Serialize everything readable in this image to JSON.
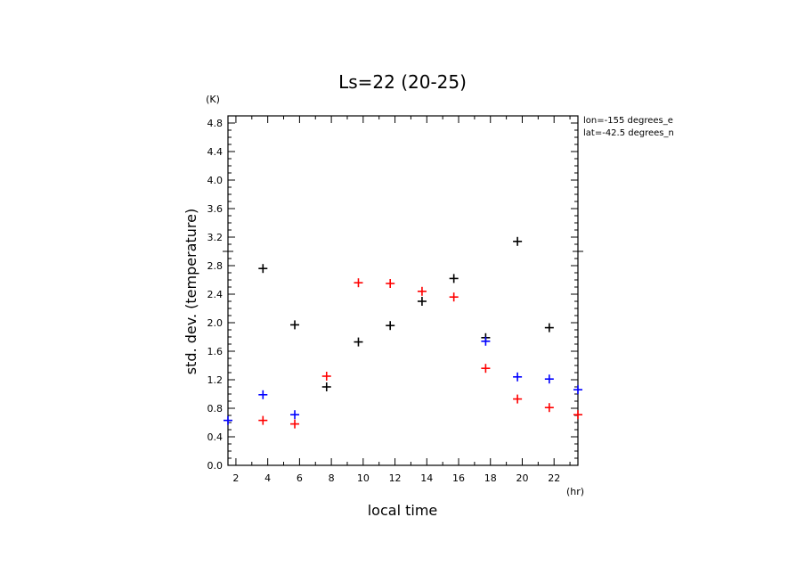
{
  "chart_data": {
    "type": "scatter",
    "title": "Ls=22 (20-25)",
    "xlabel": "local time",
    "ylabel": "std. dev. (temperature)",
    "x_unit": "(hr)",
    "y_unit": "(K)",
    "xlim": [
      1.5,
      23.5
    ],
    "ylim": [
      0.0,
      4.9
    ],
    "x_ticks": [
      2,
      4,
      6,
      8,
      10,
      12,
      14,
      16,
      18,
      20,
      22
    ],
    "y_ticks": [
      0.0,
      0.4,
      0.8,
      1.2,
      1.6,
      2.0,
      2.4,
      2.8,
      3.2,
      3.6,
      4.0,
      4.4,
      4.8
    ],
    "grid": false,
    "annotations": [
      "lon=-155 degrees_e",
      "lat=-42.5 degrees_n"
    ],
    "series": [
      {
        "color": "#000000",
        "points": [
          [
            3.7,
            2.76
          ],
          [
            5.7,
            1.97
          ],
          [
            7.7,
            1.1
          ],
          [
            9.7,
            1.73
          ],
          [
            11.7,
            1.96
          ],
          [
            13.7,
            2.3
          ],
          [
            15.7,
            2.62
          ],
          [
            17.7,
            1.79
          ],
          [
            19.7,
            3.14
          ],
          [
            21.7,
            1.93
          ]
        ]
      },
      {
        "color": "#ff0000",
        "points": [
          [
            3.7,
            0.63
          ],
          [
            5.7,
            0.58
          ],
          [
            7.7,
            1.25
          ],
          [
            9.7,
            2.56
          ],
          [
            11.7,
            2.55
          ],
          [
            13.7,
            2.44
          ],
          [
            15.7,
            2.36
          ],
          [
            17.7,
            1.36
          ],
          [
            19.7,
            0.93
          ],
          [
            21.7,
            0.81
          ],
          [
            23.5,
            0.71
          ]
        ]
      },
      {
        "color": "#0000ff",
        "points": [
          [
            1.5,
            0.63
          ],
          [
            3.7,
            0.99
          ],
          [
            5.7,
            0.71
          ],
          [
            17.7,
            1.74
          ],
          [
            19.7,
            1.24
          ],
          [
            21.7,
            1.21
          ],
          [
            23.5,
            1.06
          ]
        ]
      }
    ]
  }
}
